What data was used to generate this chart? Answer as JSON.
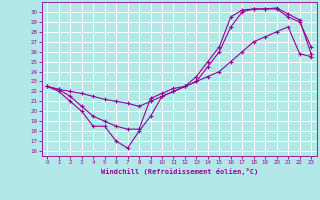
{
  "xlabel": "Windchill (Refroidissement éolien,°C)",
  "bg_color": "#b2e8e8",
  "line_color": "#990099",
  "grid_color": "#ffffff",
  "xlim": [
    -0.5,
    23.5
  ],
  "ylim": [
    15.5,
    31.0
  ],
  "yticks": [
    16,
    17,
    18,
    19,
    20,
    21,
    22,
    23,
    24,
    25,
    26,
    27,
    28,
    29,
    30
  ],
  "xticks": [
    0,
    1,
    2,
    3,
    4,
    5,
    6,
    7,
    8,
    9,
    10,
    11,
    12,
    13,
    14,
    15,
    16,
    17,
    18,
    19,
    20,
    21,
    22,
    23
  ],
  "line1": {
    "x": [
      0,
      1,
      2,
      3,
      4,
      5,
      6,
      7,
      8,
      9,
      10,
      11,
      12,
      13,
      14,
      15,
      16,
      17,
      18,
      19,
      20,
      21,
      22,
      23
    ],
    "y": [
      22.5,
      22.0,
      21.0,
      20.0,
      18.5,
      18.5,
      17.0,
      16.3,
      18.0,
      19.5,
      21.5,
      22.0,
      22.5,
      23.5,
      25.0,
      26.5,
      29.5,
      30.2,
      30.3,
      30.3,
      30.3,
      29.5,
      29.0,
      26.5
    ]
  },
  "line2": {
    "x": [
      0,
      1,
      2,
      3,
      4,
      5,
      6,
      7,
      8,
      9,
      10,
      11,
      12,
      13,
      14,
      15,
      16,
      17,
      18,
      19,
      20,
      21,
      22,
      23
    ],
    "y": [
      22.5,
      22.2,
      21.5,
      20.5,
      19.5,
      19.0,
      18.5,
      18.2,
      18.2,
      21.3,
      21.8,
      22.3,
      22.5,
      23.0,
      24.5,
      26.0,
      28.5,
      30.0,
      30.3,
      30.3,
      30.4,
      29.8,
      29.2,
      25.8
    ]
  },
  "line3": {
    "x": [
      0,
      1,
      2,
      3,
      4,
      5,
      6,
      7,
      8,
      9,
      10,
      11,
      12,
      13,
      14,
      15,
      16,
      17,
      18,
      19,
      20,
      21,
      22,
      23
    ],
    "y": [
      22.5,
      22.2,
      22.0,
      21.8,
      21.5,
      21.2,
      21.0,
      20.8,
      20.5,
      21.0,
      21.5,
      22.0,
      22.5,
      23.0,
      23.5,
      24.0,
      25.0,
      26.0,
      27.0,
      27.5,
      28.0,
      28.5,
      25.8,
      25.5
    ]
  }
}
